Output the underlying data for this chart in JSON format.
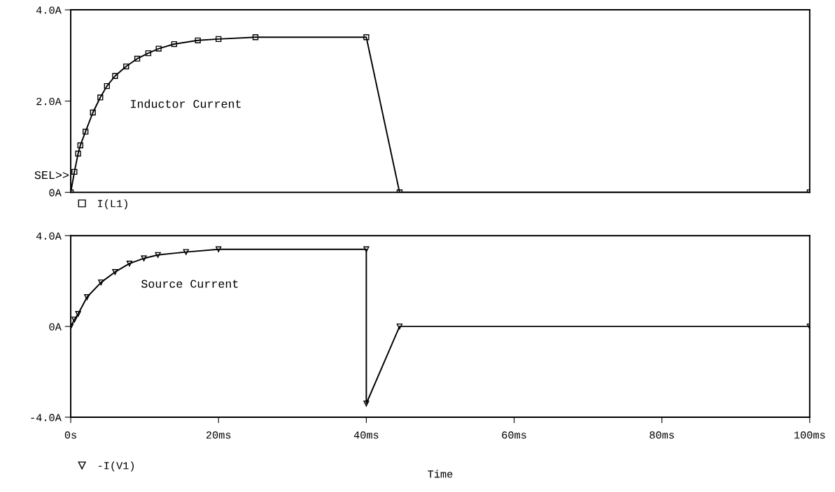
{
  "chart_data": [
    {
      "type": "line",
      "annotations": [
        "Inductor Current",
        "SEL>>"
      ],
      "xlim": [
        0,
        100
      ],
      "ylim": [
        0,
        4
      ],
      "yticks": [
        {
          "value": 0,
          "label": "0A"
        },
        {
          "value": 2,
          "label": "2.0A"
        },
        {
          "value": 4,
          "label": "4.0A"
        }
      ],
      "tick_labels": "y",
      "grid": false,
      "legend": "bottom left",
      "marker": "square",
      "line_style": "solid",
      "series": [
        {
          "name": "I(L1)",
          "color": "#000000",
          "x": [
            0,
            0.5,
            1,
            1.3,
            2,
            3,
            4,
            4.9,
            6,
            7.5,
            9,
            10.5,
            11.9,
            14,
            17.2,
            20,
            25,
            40,
            44.5,
            100
          ],
          "values": [
            0,
            0.45,
            0.85,
            1.03,
            1.33,
            1.75,
            2.08,
            2.33,
            2.55,
            2.76,
            2.93,
            3.05,
            3.15,
            3.25,
            3.33,
            3.36,
            3.4,
            3.4,
            0,
            0
          ]
        }
      ]
    },
    {
      "type": "line",
      "annotations": [
        "Source Current"
      ],
      "xlabel": "Time",
      "xlim": [
        0,
        100
      ],
      "xticks": [
        {
          "value": 0,
          "label": "0s"
        },
        {
          "value": 20,
          "label": "20ms"
        },
        {
          "value": 40,
          "label": "40ms"
        },
        {
          "value": 60,
          "label": "60ms"
        },
        {
          "value": 80,
          "label": "80ms"
        },
        {
          "value": 100,
          "label": "100ms"
        }
      ],
      "ylim": [
        -4,
        4
      ],
      "yticks": [
        {
          "value": -4,
          "label": "-4.0A"
        },
        {
          "value": 0,
          "label": "0A"
        },
        {
          "value": 4,
          "label": "4.0A"
        }
      ],
      "grid": false,
      "legend": "bottom left",
      "marker": "triangle",
      "line_style": "solid",
      "series": [
        {
          "name": "-I(V1)",
          "color": "#000000",
          "x": [
            0,
            0.5,
            1,
            2.2,
            4.1,
            6,
            7.95,
            9.9,
            11.8,
            15.6,
            20,
            40,
            40,
            44.5,
            100
          ],
          "values": [
            0,
            0.3,
            0.55,
            1.29,
            1.94,
            2.4,
            2.77,
            3.0,
            3.15,
            3.28,
            3.4,
            3.4,
            -3.4,
            0,
            0
          ]
        }
      ]
    }
  ]
}
